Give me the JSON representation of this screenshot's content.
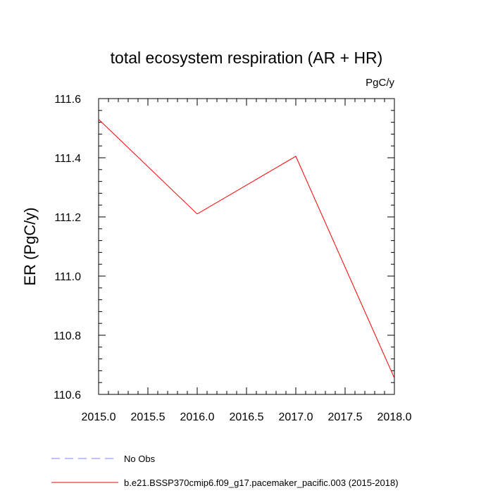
{
  "chart_data": {
    "type": "line",
    "title": "total ecosystem respiration (AR + HR)",
    "units": "PgC/y",
    "xlabel": "",
    "ylabel": "ER  (PgC/y)",
    "xlim": [
      2015.0,
      2018.0
    ],
    "ylim": [
      110.6,
      111.6
    ],
    "x_ticks": [
      "2015.0",
      "2015.5",
      "2016.0",
      "2016.5",
      "2017.0",
      "2017.5",
      "2018.0"
    ],
    "y_ticks": [
      "110.6",
      "110.8",
      "111.0",
      "111.2",
      "111.4",
      "111.6"
    ],
    "grid": false,
    "legend_placement": "bottom",
    "series": [
      {
        "name": "No Obs",
        "color": "#8080ff",
        "dash": "dashed",
        "x": [],
        "y": []
      },
      {
        "name": "b.e21.BSSP370cmip6.f09_g17.pacemaker_pacific.003 (2015-2018)",
        "color": "#ff0000",
        "dash": "solid",
        "x": [
          2015,
          2016,
          2017,
          2018
        ],
        "y": [
          111.53,
          111.21,
          111.405,
          110.655
        ]
      }
    ]
  }
}
